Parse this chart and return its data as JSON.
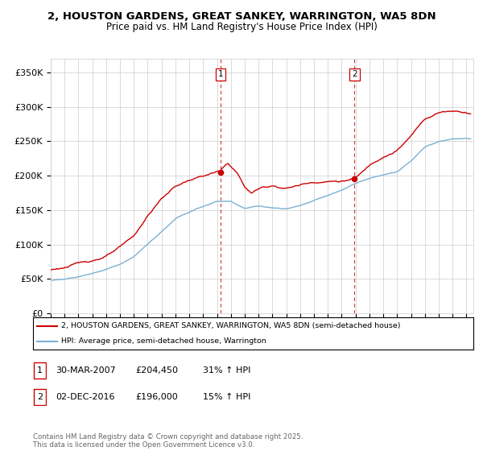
{
  "title": "2, HOUSTON GARDENS, GREAT SANKEY, WARRINGTON, WA5 8DN",
  "subtitle": "Price paid vs. HM Land Registry's House Price Index (HPI)",
  "ylabel_ticks": [
    "£0",
    "£50K",
    "£100K",
    "£150K",
    "£200K",
    "£250K",
    "£300K",
    "£350K"
  ],
  "ytick_values": [
    0,
    50000,
    100000,
    150000,
    200000,
    250000,
    300000,
    350000
  ],
  "ylim": [
    0,
    370000
  ],
  "xlim_start": 1995.0,
  "xlim_end": 2025.5,
  "marker1_x": 2007.25,
  "marker2_x": 2016.92,
  "marker1_price": 204450,
  "marker2_price": 196000,
  "marker1_label": "1",
  "marker2_label": "2",
  "marker1_date": "30-MAR-2007",
  "marker2_date": "02-DEC-2016",
  "marker1_hpi": "31% ↑ HPI",
  "marker2_hpi": "15% ↑ HPI",
  "marker1_price_str": "£204,450",
  "marker2_price_str": "£196,000",
  "red_color": "#cc0000",
  "blue_color": "#7ab0d4",
  "grid_color": "#cccccc",
  "legend_label_red": "2, HOUSTON GARDENS, GREAT SANKEY, WARRINGTON, WA5 8DN (semi-detached house)",
  "legend_label_blue": "HPI: Average price, semi-detached house, Warrington",
  "footer": "Contains HM Land Registry data © Crown copyright and database right 2025.\nThis data is licensed under the Open Government Licence v3.0.",
  "title_fontsize": 9.5,
  "subtitle_fontsize": 8.5
}
